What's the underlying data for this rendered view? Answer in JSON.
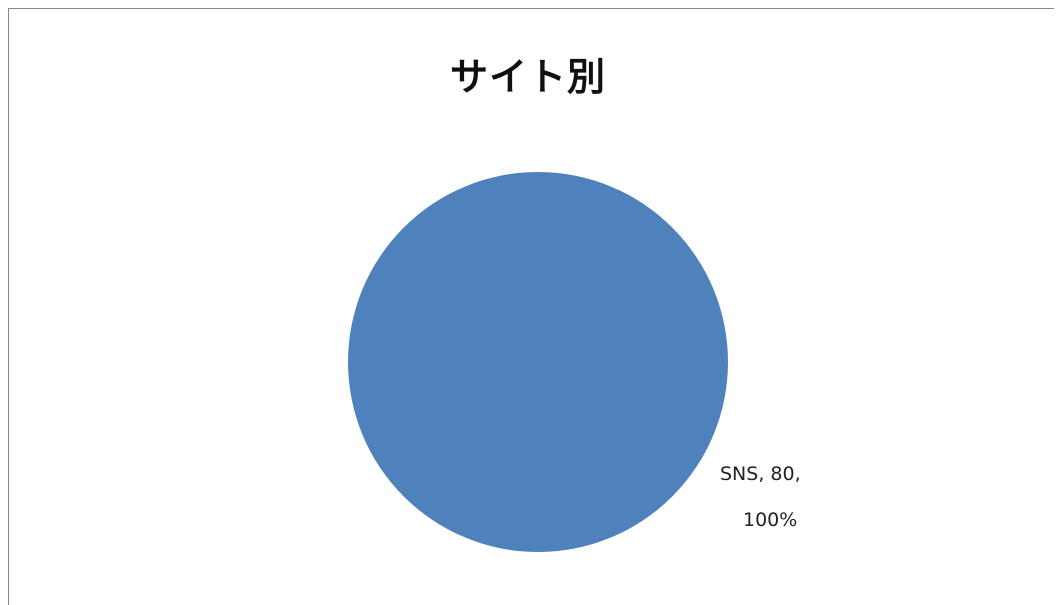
{
  "chart_data": {
    "type": "pie",
    "title": "サイト別",
    "slices": [
      {
        "label": "SNS",
        "value": 80,
        "percent": "100%",
        "color": "#4F81BD",
        "data_label_line1": "SNS, 80,",
        "data_label_line2": "100%"
      }
    ],
    "legend": "none"
  }
}
